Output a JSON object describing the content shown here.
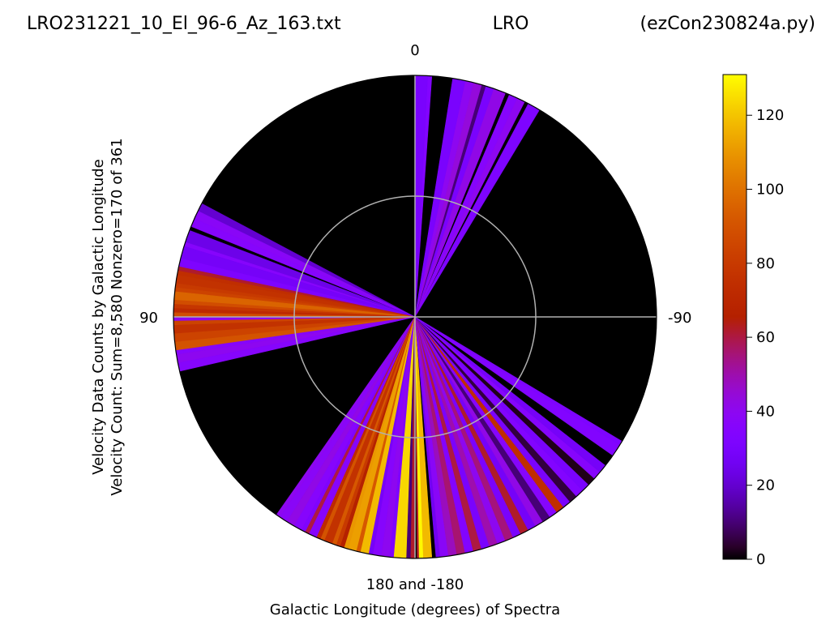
{
  "chart_data": {
    "type": "polar-heatmap",
    "title": {
      "left": "LRO231221_10_El_96-6_Az_163.txt",
      "center": "LRO",
      "right": "(ezCon230824a.py)"
    },
    "angle_labels": {
      "top": "0",
      "left": "90",
      "right": "-90",
      "bottom": "180 and -180"
    },
    "xlabel": "Galactic Longitude (degrees) of Spectra",
    "ylabel_line1": "Velocity Data Counts by Galactic Longitude",
    "ylabel_line2": "Velocity Count: Sum=8,580 Nonzero=170 of 361",
    "colorbar": {
      "colormap": "gnuplot",
      "range": [
        0,
        131
      ],
      "ticks": [
        "0",
        "20",
        "40",
        "60",
        "80",
        "100",
        "120"
      ],
      "tick_values": [
        0,
        20,
        40,
        60,
        80,
        100,
        120
      ]
    },
    "angle_range": [
      -180,
      180
    ],
    "grid": true,
    "sectors": [
      [
        -180,
        0
      ],
      [
        -179.5,
        62
      ],
      [
        -179,
        130
      ],
      [
        -178,
        118
      ],
      [
        -176,
        0
      ],
      [
        -175,
        26
      ],
      [
        -174,
        38
      ],
      [
        -172,
        48
      ],
      [
        -170,
        56
      ],
      [
        -168,
        34
      ],
      [
        -166,
        60
      ],
      [
        -164,
        30
      ],
      [
        -162,
        50
      ],
      [
        -160,
        40
      ],
      [
        -158,
        55
      ],
      [
        -156,
        30
      ],
      [
        -154,
        62
      ],
      [
        -152,
        28
      ],
      [
        -150,
        42
      ],
      [
        -148,
        10
      ],
      [
        -146,
        36
      ],
      [
        -144,
        74
      ],
      [
        -142,
        30
      ],
      [
        -140,
        5
      ],
      [
        -138,
        34
      ],
      [
        -136,
        30
      ],
      [
        -134,
        2
      ],
      [
        -132,
        36
      ],
      [
        -130,
        28
      ],
      [
        -128,
        0
      ],
      [
        -125,
        34
      ],
      [
        -122,
        32
      ],
      [
        -121,
        0
      ],
      [
        -33,
        0
      ],
      [
        -31,
        32
      ],
      [
        -28,
        0
      ],
      [
        -27,
        40
      ],
      [
        -25,
        36
      ],
      [
        -23,
        0
      ],
      [
        -22,
        42
      ],
      [
        -19,
        30
      ],
      [
        -17,
        10
      ],
      [
        -16,
        44
      ],
      [
        -14,
        40
      ],
      [
        -12,
        30
      ],
      [
        -9,
        0
      ],
      [
        -5,
        0
      ],
      [
        -4,
        34
      ],
      [
        -3,
        30
      ],
      [
        0,
        0
      ],
      [
        62,
        20
      ],
      [
        64,
        38
      ],
      [
        66,
        36
      ],
      [
        68,
        0
      ],
      [
        69,
        24
      ],
      [
        72,
        36
      ],
      [
        73,
        28
      ],
      [
        76,
        32
      ],
      [
        78,
        62
      ],
      [
        79,
        74
      ],
      [
        80,
        76
      ],
      [
        82,
        80
      ],
      [
        83,
        84
      ],
      [
        84,
        96
      ],
      [
        86,
        88
      ],
      [
        87,
        78
      ],
      [
        88,
        72
      ],
      [
        89,
        88
      ],
      [
        90,
        40
      ],
      [
        91,
        84
      ],
      [
        92,
        76
      ],
      [
        94,
        84
      ],
      [
        96,
        90
      ],
      [
        98,
        36
      ],
      [
        99,
        40
      ],
      [
        101,
        36
      ],
      [
        103,
        0
      ],
      [
        144,
        0
      ],
      [
        145,
        40
      ],
      [
        146,
        38
      ],
      [
        148,
        42
      ],
      [
        150,
        36
      ],
      [
        152,
        32
      ],
      [
        153,
        60
      ],
      [
        154,
        36
      ],
      [
        156,
        72
      ],
      [
        157,
        90
      ],
      [
        158,
        76
      ],
      [
        160,
        92
      ],
      [
        161,
        80
      ],
      [
        162,
        66
      ],
      [
        163,
        110
      ],
      [
        164,
        112
      ],
      [
        166,
        92
      ],
      [
        167,
        118
      ],
      [
        169,
        28
      ],
      [
        170,
        36
      ],
      [
        172,
        40
      ],
      [
        174,
        32
      ],
      [
        175,
        124
      ],
      [
        177,
        124
      ],
      [
        178,
        10
      ],
      [
        179,
        62
      ],
      [
        180,
        0
      ]
    ]
  }
}
